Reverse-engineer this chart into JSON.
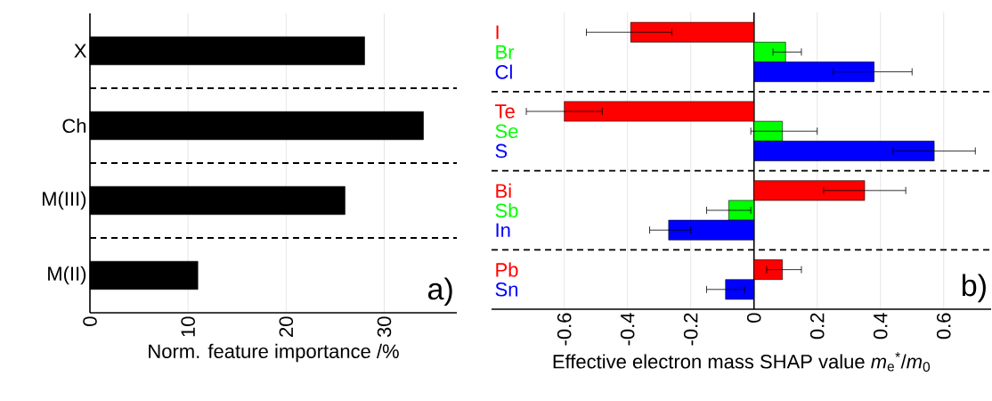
{
  "chart_data": [
    {
      "type": "bar",
      "orientation": "horizontal",
      "categories": [
        "X",
        "Ch",
        "M(III)",
        "M(II)"
      ],
      "values": [
        28,
        34,
        26,
        11
      ],
      "color": "#000000",
      "xlim": [
        0,
        37.4
      ],
      "xticks": [
        0,
        10,
        20,
        30
      ],
      "xlabel": "Norm. feature importance /%",
      "grid": "x",
      "annotations": [
        "a)"
      ]
    },
    {
      "type": "bar",
      "orientation": "horizontal",
      "categories": [
        "I",
        "Br",
        "Cl",
        "Te",
        "Se",
        "S",
        "Bi",
        "Sb",
        "In",
        "Pb",
        "Sn"
      ],
      "values": [
        -0.39,
        0.1,
        0.38,
        -0.6,
        0.09,
        0.57,
        0.35,
        -0.08,
        -0.27,
        0.09,
        -0.09
      ],
      "colors": [
        "#ff0000",
        "#00ff00",
        "#0000ff",
        "#ff0000",
        "#00ff00",
        "#0000ff",
        "#ff0000",
        "#00ff00",
        "#0000ff",
        "#ff0000",
        "#0000ff"
      ],
      "errors": [
        [
          -0.53,
          -0.26
        ],
        [
          0.06,
          0.15
        ],
        [
          0.25,
          0.5
        ],
        [
          -0.72,
          -0.48
        ],
        [
          -0.01,
          0.2
        ],
        [
          0.44,
          0.7
        ],
        [
          0.22,
          0.48
        ],
        [
          -0.15,
          -0.01
        ],
        [
          -0.33,
          -0.2
        ],
        [
          0.04,
          0.15
        ],
        [
          -0.15,
          -0.03
        ]
      ],
      "xlim": [
        -0.83,
        0.75
      ],
      "xticks": [
        -0.6,
        -0.4,
        -0.2,
        0,
        0.2,
        0.4,
        0.6
      ],
      "xlabel": "Effective electron mass SHAP value *m*$_{e}$$^{*}$/*m*$_{0}$",
      "grid": "x",
      "annotations": [
        "b)"
      ]
    }
  ]
}
